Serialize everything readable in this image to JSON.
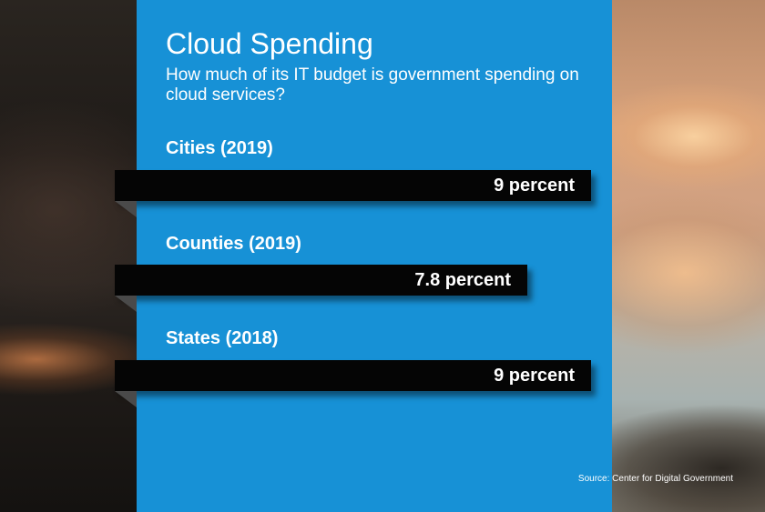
{
  "chart_data": {
    "type": "bar",
    "title": "Cloud Spending",
    "subtitle": "How much of its IT budget is government spending on cloud services?",
    "categories": [
      "Cities (2019)",
      "Counties (2019)",
      "States (2018)"
    ],
    "values": [
      9,
      7.8,
      9
    ],
    "value_labels": [
      "9 percent",
      "7.8 percent",
      "9 percent"
    ],
    "orientation": "horizontal",
    "xlim": [
      0,
      9
    ],
    "grid": false,
    "source": "Source: Center for Digital Government"
  },
  "colors": {
    "panel": "#1791d6",
    "bar": "#050505",
    "text": "#ffffff"
  }
}
